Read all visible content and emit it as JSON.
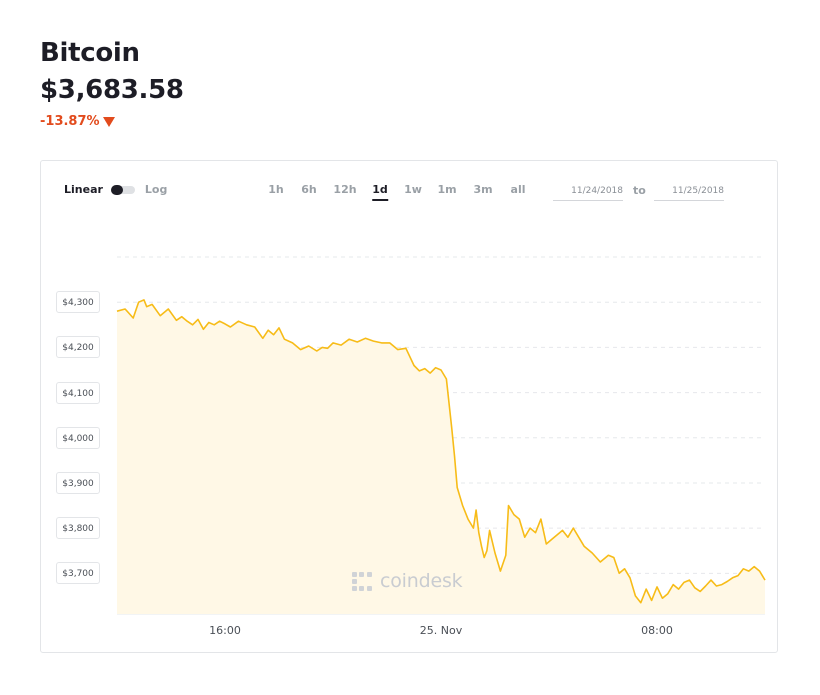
{
  "header": {
    "title": "Bitcoin",
    "price": "$3,683.58",
    "change": "-13.87%"
  },
  "controls": {
    "scale_linear": "Linear",
    "scale_log": "Log",
    "ranges": [
      "1h",
      "6h",
      "12h",
      "1d",
      "1w",
      "1m",
      "3m",
      "all"
    ],
    "active_range": "1d",
    "date_from": "11/24/2018",
    "date_to": "11/25/2018",
    "to_label": "to"
  },
  "watermark": "coindesk",
  "colors": {
    "line": "#f7bc18",
    "fill": "#fff8e6",
    "down": "#e24b1d"
  },
  "chart_data": {
    "type": "line",
    "x_tick_labels": [
      "16:00",
      "25. Nov",
      "08:00"
    ],
    "x_ticks": [
      16,
      24,
      32
    ],
    "y_tick_labels": [
      "$4,300",
      "$4,200",
      "$4,100",
      "$4,000",
      "$3,900",
      "$3,800",
      "$3,700"
    ],
    "y_ticks": [
      4300,
      4200,
      4100,
      4000,
      3900,
      3800,
      3700
    ],
    "ylim": [
      3610,
      4400
    ],
    "xlim": [
      12,
      36
    ],
    "grid": true,
    "series": [
      {
        "x": [
          12.0,
          12.3,
          12.6,
          12.8,
          13.0,
          13.1,
          13.3,
          13.6,
          13.9,
          14.2,
          14.4,
          14.6,
          14.8,
          15.0,
          15.2,
          15.4,
          15.6,
          15.8,
          16.0,
          16.2,
          16.5,
          16.8,
          17.1,
          17.4,
          17.6,
          17.8,
          18.0,
          18.2,
          18.5,
          18.8,
          19.1,
          19.4,
          19.6,
          19.8,
          20.0,
          20.3,
          20.6,
          20.9,
          21.2,
          21.5,
          21.8,
          22.1,
          22.4,
          22.7,
          23.0,
          23.2,
          23.4,
          23.6,
          23.8,
          24.0,
          24.2,
          24.4,
          24.5,
          24.6,
          24.8,
          25.0,
          25.2,
          25.3,
          25.4,
          25.5,
          25.6,
          25.7,
          25.8,
          26.0,
          26.2,
          26.4,
          26.5,
          26.7,
          26.9,
          27.1,
          27.3,
          27.5,
          27.7,
          27.9,
          28.1,
          28.3,
          28.5,
          28.7,
          28.9,
          29.1,
          29.3,
          29.6,
          29.9,
          30.2,
          30.4,
          30.6,
          30.8,
          31.0,
          31.2,
          31.4,
          31.6,
          31.8,
          32.0,
          32.2,
          32.4,
          32.6,
          32.8,
          33.0,
          33.2,
          33.4,
          33.6,
          33.8,
          34.0,
          34.2,
          34.4,
          34.6,
          34.8,
          35.0,
          35.2,
          35.4,
          35.6,
          35.8,
          36.0
        ],
        "y": [
          4280,
          4285,
          4265,
          4300,
          4305,
          4290,
          4295,
          4270,
          4285,
          4260,
          4268,
          4258,
          4250,
          4262,
          4240,
          4255,
          4250,
          4258,
          4252,
          4245,
          4258,
          4250,
          4245,
          4220,
          4238,
          4228,
          4243,
          4218,
          4210,
          4195,
          4203,
          4192,
          4200,
          4198,
          4210,
          4205,
          4218,
          4212,
          4220,
          4214,
          4210,
          4210,
          4195,
          4198,
          4160,
          4148,
          4153,
          4143,
          4155,
          4150,
          4130,
          4020,
          3960,
          3890,
          3850,
          3820,
          3800,
          3840,
          3790,
          3760,
          3735,
          3750,
          3795,
          3745,
          3705,
          3740,
          3850,
          3830,
          3820,
          3780,
          3800,
          3790,
          3820,
          3765,
          3775,
          3785,
          3795,
          3780,
          3800,
          3780,
          3760,
          3745,
          3725,
          3740,
          3735,
          3700,
          3710,
          3690,
          3650,
          3635,
          3665,
          3640,
          3670,
          3645,
          3655,
          3675,
          3665,
          3680,
          3685,
          3668,
          3660,
          3672,
          3685,
          3672,
          3675,
          3682,
          3690,
          3695,
          3710,
          3705,
          3715,
          3705,
          3685
        ]
      }
    ]
  }
}
